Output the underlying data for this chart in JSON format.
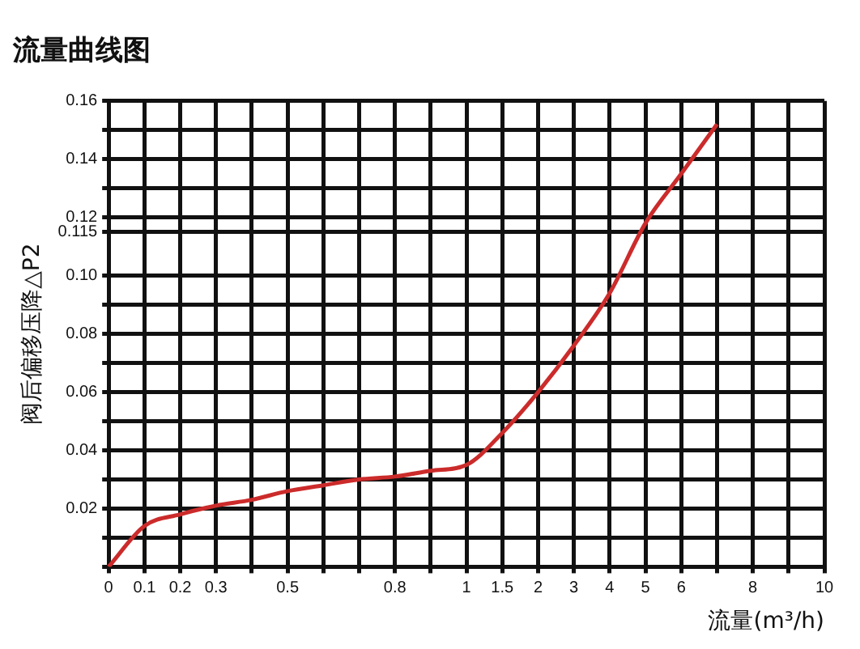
{
  "chart_data": {
    "type": "line",
    "title": "流量曲线图",
    "xlabel": "流量(m³/h)",
    "ylabel": "阀后偏移压降△P2",
    "categories": [
      "0",
      "0.1",
      "0.2",
      "0.3",
      null,
      "0.5",
      null,
      null,
      "0.8",
      null,
      "1",
      "1.5",
      "2",
      "3",
      "4",
      "5",
      "6",
      null,
      "8",
      null,
      "10"
    ],
    "series": [
      {
        "color": "#cc2b2b",
        "values": [
          0,
          0.014,
          0.018,
          0.021,
          0.023,
          0.026,
          0.028,
          0.03,
          0.031,
          0.033,
          0.035,
          0.046,
          0.06,
          0.076,
          0.094,
          0.118,
          0.135,
          0.152,
          null,
          null,
          null
        ]
      }
    ],
    "ylim": [
      0,
      0.16
    ],
    "yticks": [
      {
        "value": 0,
        "label": null
      },
      {
        "value": 0.01,
        "label": null
      },
      0.02,
      {
        "value": 0.03,
        "label": null
      },
      0.04,
      {
        "value": 0.05,
        "label": null
      },
      0.06,
      {
        "value": 0.07,
        "label": null
      },
      0.08,
      {
        "value": 0.09,
        "label": null
      },
      {
        "value": 0.1,
        "label": "0.10"
      },
      0.115,
      0.12,
      {
        "value": 0.13,
        "label": null
      },
      0.14,
      {
        "value": 0.15,
        "label": null
      },
      0.16
    ],
    "grid": true,
    "legend": false,
    "marker": "none",
    "line_style": "solid"
  }
}
